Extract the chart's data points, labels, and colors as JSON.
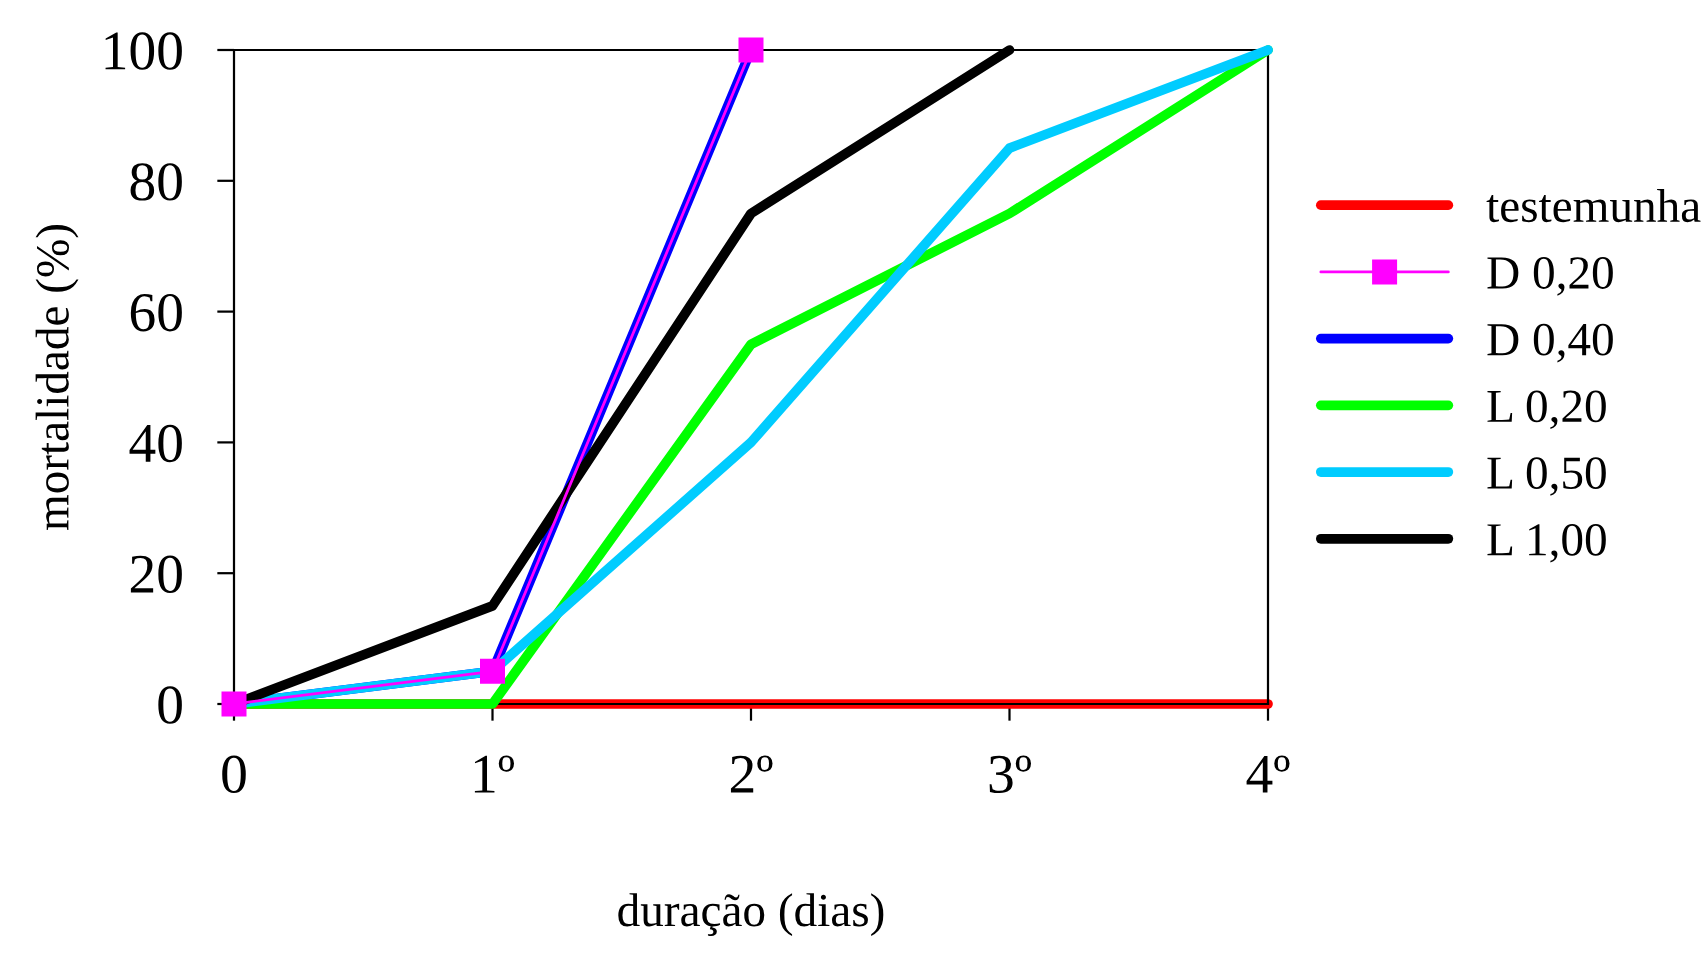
{
  "chart_data": {
    "type": "line",
    "xlabel": "duração (dias)",
    "ylabel": "mortalidade (%)",
    "categories": [
      "0",
      "1º",
      "2º",
      "3º",
      "4º"
    ],
    "series": [
      {
        "name": "testemunha",
        "color": "#ff0000",
        "values": [
          0,
          0,
          0,
          0,
          0
        ]
      },
      {
        "name": "D 0,20",
        "color": "#ff00ff",
        "marker": "square",
        "values": [
          0,
          5,
          100,
          null,
          null
        ]
      },
      {
        "name": "D 0,40",
        "color": "#0000ff",
        "values": [
          0,
          5,
          100,
          null,
          null
        ]
      },
      {
        "name": "L 0,20",
        "color": "#00ff00",
        "values": [
          0,
          0,
          55,
          75,
          100
        ]
      },
      {
        "name": "L 0,50",
        "color": "#00ccff",
        "values": [
          0,
          5,
          40,
          85,
          100
        ]
      },
      {
        "name": "L 1,00",
        "color": "#000000",
        "values": [
          0,
          15,
          75,
          100,
          null
        ]
      }
    ],
    "ylim": [
      0,
      100
    ],
    "yticks": [
      0,
      20,
      40,
      60,
      80,
      100
    ],
    "grid": false,
    "legend": "right"
  }
}
